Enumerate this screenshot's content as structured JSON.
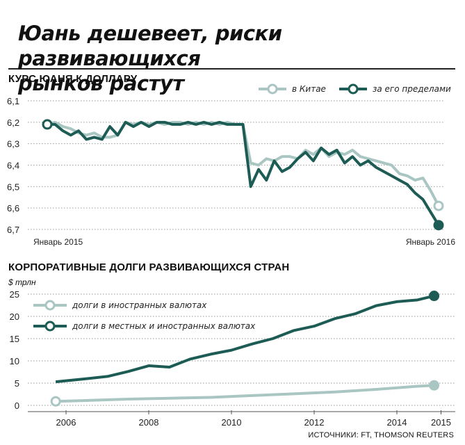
{
  "title_line1": "Юань дешевеет, риски развивающихся",
  "title_line2": "рынков растут",
  "source": "ИСТОЧНИКИ: FT, THOMSON REUTERS",
  "colors": {
    "dark": "#1d5c55",
    "light": "#a9c6c3",
    "grid": "#9a9a9a"
  },
  "chart_data": [
    {
      "type": "line",
      "title": "КУРС ЮАНЯ К ДОЛЛАРУ",
      "y_ticks": [
        "6,1",
        "6,2",
        "6,3",
        "6,4",
        "6,5",
        "6,6",
        "6,7"
      ],
      "ylim": [
        6.1,
        6.7
      ],
      "y_inverted": true,
      "x_labels": [
        "Январь 2015",
        "Январь 2016"
      ],
      "series": [
        {
          "name": "в Китае",
          "color": "#a9c6c3",
          "x": [
            0,
            2,
            4,
            6,
            8,
            10,
            12,
            14,
            16,
            18,
            20,
            22,
            24,
            26,
            28,
            30,
            32,
            34,
            36,
            38,
            40,
            42,
            44,
            46,
            48,
            50,
            52,
            54,
            56,
            58,
            60,
            62,
            64,
            66,
            68,
            70,
            72,
            74,
            76,
            78,
            80,
            82,
            84,
            86,
            88,
            90,
            92,
            94,
            96,
            98,
            100
          ],
          "values": [
            6.21,
            6.2,
            6.22,
            6.23,
            6.25,
            6.26,
            6.25,
            6.27,
            6.27,
            6.26,
            6.2,
            6.21,
            6.2,
            6.21,
            6.2,
            6.21,
            6.2,
            6.2,
            6.21,
            6.2,
            6.21,
            6.2,
            6.21,
            6.2,
            6.21,
            6.21,
            6.39,
            6.4,
            6.37,
            6.38,
            6.36,
            6.36,
            6.37,
            6.33,
            6.35,
            6.32,
            6.36,
            6.34,
            6.35,
            6.33,
            6.36,
            6.37,
            6.38,
            6.39,
            6.4,
            6.44,
            6.45,
            6.47,
            6.46,
            6.52,
            6.59
          ]
        },
        {
          "name": "за его пределами",
          "color": "#1d5c55",
          "x": [
            0,
            2,
            4,
            6,
            8,
            10,
            12,
            14,
            16,
            18,
            20,
            22,
            24,
            26,
            28,
            30,
            32,
            34,
            36,
            38,
            40,
            42,
            44,
            46,
            48,
            50,
            52,
            54,
            56,
            58,
            60,
            62,
            64,
            66,
            68,
            70,
            72,
            74,
            76,
            78,
            80,
            82,
            84,
            86,
            88,
            90,
            92,
            94,
            96,
            98,
            100
          ],
          "values": [
            6.21,
            6.21,
            6.24,
            6.26,
            6.24,
            6.28,
            6.27,
            6.28,
            6.22,
            6.26,
            6.2,
            6.22,
            6.2,
            6.22,
            6.2,
            6.2,
            6.21,
            6.21,
            6.2,
            6.21,
            6.2,
            6.21,
            6.2,
            6.21,
            6.21,
            6.21,
            6.5,
            6.42,
            6.47,
            6.38,
            6.43,
            6.41,
            6.37,
            6.34,
            6.38,
            6.32,
            6.35,
            6.33,
            6.39,
            6.36,
            6.4,
            6.38,
            6.41,
            6.43,
            6.45,
            6.47,
            6.49,
            6.53,
            6.56,
            6.62,
            6.68
          ]
        }
      ]
    },
    {
      "type": "line",
      "title": "КОРПОРАТИВНЫЕ ДОЛГИ РАЗВИВАЮЩИХСЯ СТРАН",
      "unit": "$ трлн",
      "y_ticks": [
        "0",
        "5",
        "10",
        "15",
        "20",
        "25"
      ],
      "ylim": [
        0,
        25
      ],
      "x_ticks": [
        "2006",
        "2008",
        "2010",
        "2012",
        "2014",
        "2015"
      ],
      "series": [
        {
          "name": "долги в иностранных валютах",
          "color": "#a9c6c3",
          "x": [
            2005.75,
            2006.5,
            2007.5,
            2008.5,
            2009.5,
            2010.5,
            2011.5,
            2012.5,
            2013.5,
            2014.5,
            2014.9
          ],
          "values": [
            0.9,
            1.1,
            1.4,
            1.6,
            1.8,
            2.2,
            2.6,
            3.0,
            3.6,
            4.3,
            4.5
          ]
        },
        {
          "name": "долги в местных и иностранных валютах",
          "color": "#1d5c55",
          "x": [
            2005.75,
            2006.5,
            2007.0,
            2007.5,
            2008.0,
            2008.5,
            2009.0,
            2009.5,
            2010.0,
            2010.5,
            2011.0,
            2011.5,
            2012.0,
            2012.5,
            2013.0,
            2013.5,
            2014.0,
            2014.5,
            2014.9
          ],
          "values": [
            5.3,
            6.0,
            6.5,
            7.6,
            8.9,
            8.6,
            10.4,
            11.5,
            12.4,
            13.8,
            15.0,
            16.8,
            17.8,
            19.5,
            20.6,
            22.4,
            23.3,
            23.7,
            24.6
          ]
        }
      ]
    }
  ]
}
